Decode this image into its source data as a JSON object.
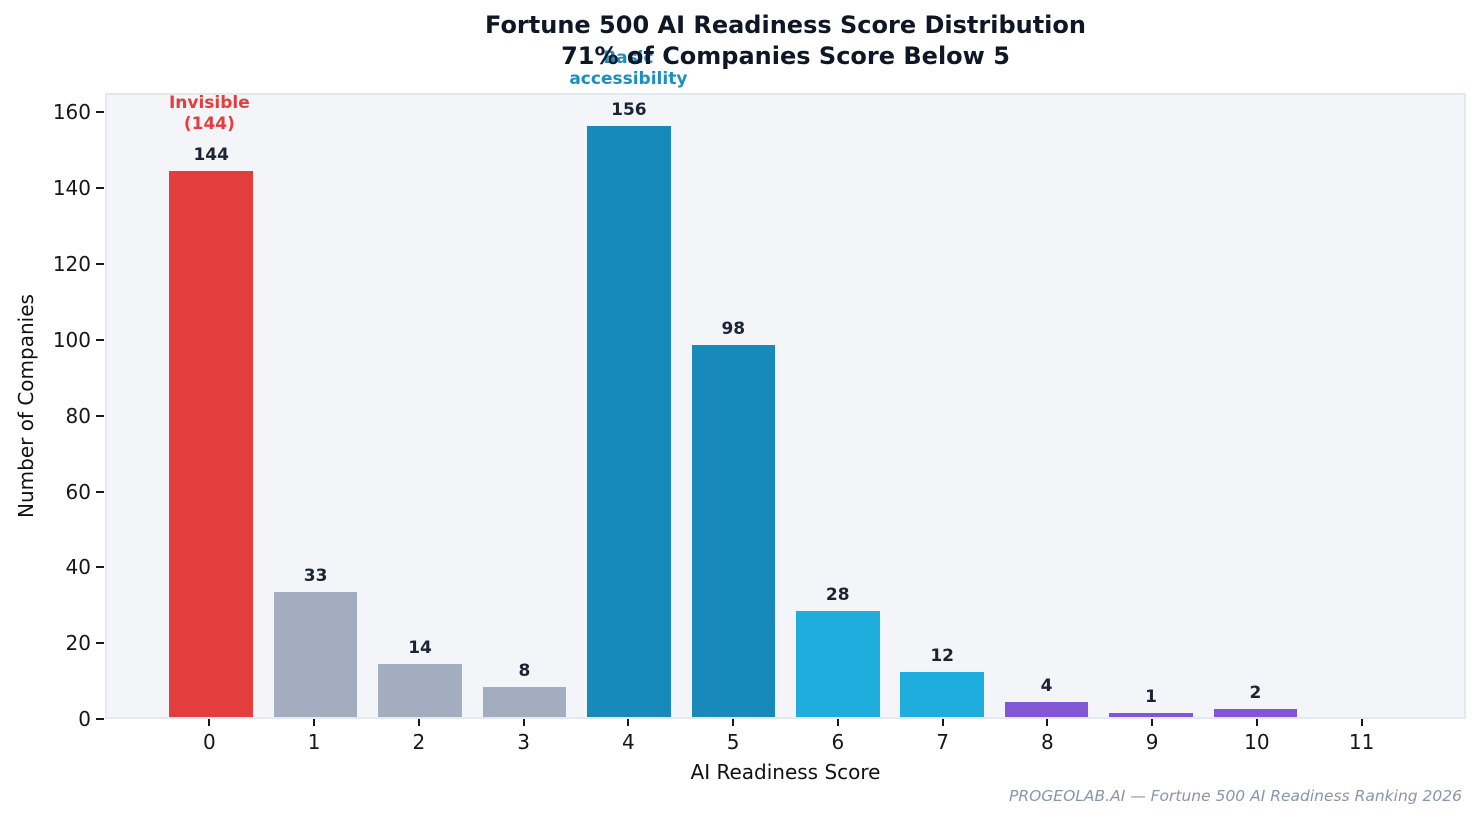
{
  "header": {
    "title": "Fortune 500 AI Readiness Score Distribution",
    "subtitle": "71% of Companies Score Below 5"
  },
  "chart_data": {
    "type": "bar",
    "title": "Fortune 500 AI Readiness Score Distribution",
    "subtitle": "71% of Companies Score Below 5",
    "categories": [
      "0",
      "1",
      "2",
      "3",
      "4",
      "5",
      "6",
      "7",
      "8",
      "9",
      "10",
      "11"
    ],
    "values": [
      144,
      33,
      14,
      8,
      156,
      98,
      28,
      12,
      4,
      1,
      2,
      0
    ],
    "bar_colors": [
      "#e43d3d",
      "#a2aec0",
      "#a2aec0",
      "#a2aec0",
      "#1789ba",
      "#1789ba",
      "#1fadde",
      "#1fadde",
      "#8257d6",
      "#8257d6",
      "#8257d6",
      "#8257d6"
    ],
    "value_label_color": "#1c2433",
    "xlabel": "AI Readiness Score",
    "ylabel": "Number of Companies",
    "yticks": [
      0,
      20,
      40,
      60,
      80,
      100,
      120,
      140,
      160
    ],
    "ylim": [
      0,
      160
    ],
    "grid": false,
    "legend_position": "none",
    "plot_background": "#f4f5f9",
    "annotations": [
      {
        "x_index": 0,
        "lines": [
          "Invisible",
          "(144)"
        ],
        "color": "#e43d3d"
      },
      {
        "x_index": 4,
        "lines": [
          "Basic",
          "accessibility"
        ],
        "color": "#1b90c0"
      }
    ]
  },
  "footer": {
    "source": "PROGEOLAB.AI — Fortune 500 AI Readiness Ranking 2026"
  }
}
